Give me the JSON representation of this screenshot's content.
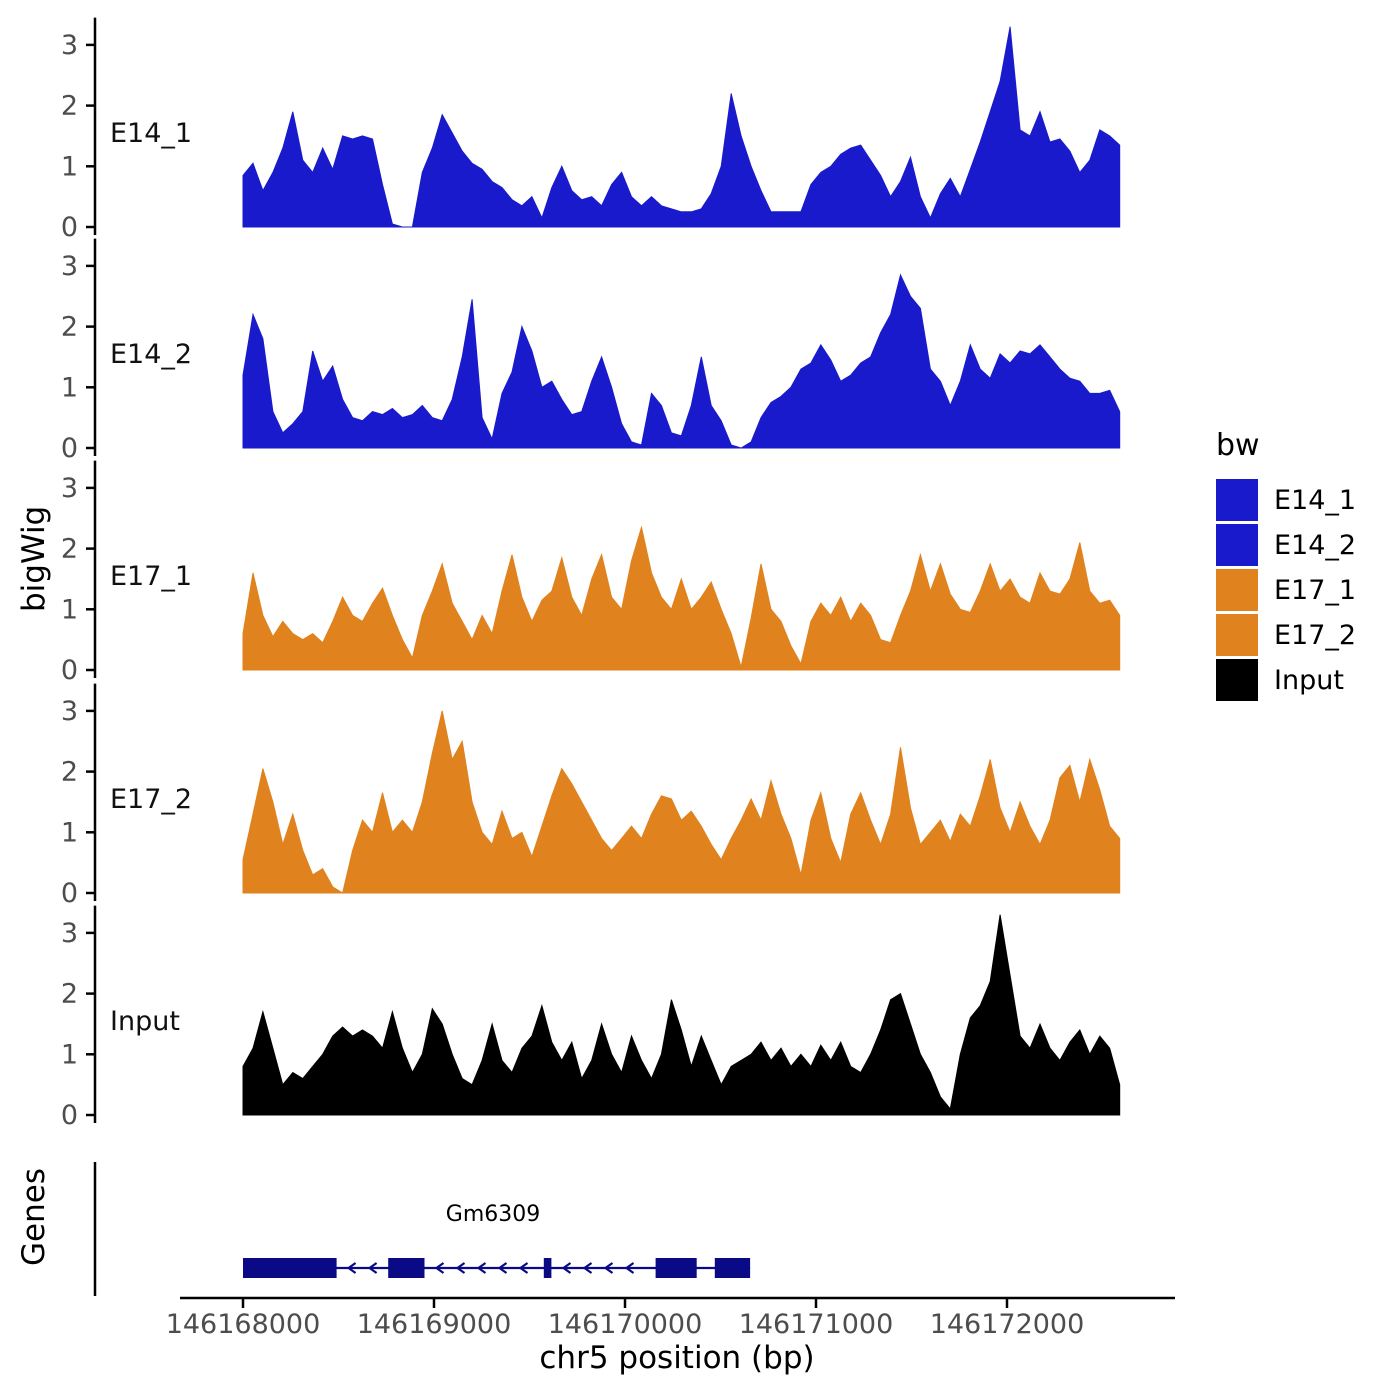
{
  "figure": {
    "y_axis_title": "bigWig",
    "genes_axis_title": "Genes",
    "background": "#ffffff"
  },
  "colors": {
    "blue": "#1a1acd",
    "orange": "#e0821e",
    "black": "#000000",
    "gene": "#0a0a87",
    "axis": "#000000",
    "tick_label": "#4d4d4d"
  },
  "chart_data": [
    {
      "type": "area",
      "name": "E14_1",
      "color": "#1a1acd",
      "x_start_bp": 146168000,
      "x_end_bp": 146172590,
      "ylim": [
        0,
        3.45
      ],
      "yticks": [
        0,
        1,
        2,
        3
      ],
      "values": [
        0.85,
        1.05,
        0.6,
        0.9,
        1.3,
        1.9,
        1.1,
        0.9,
        1.3,
        0.95,
        1.5,
        1.45,
        1.5,
        1.45,
        0.7,
        0.05,
        0,
        0,
        0.9,
        1.3,
        1.85,
        1.55,
        1.25,
        1.05,
        0.95,
        0.75,
        0.65,
        0.45,
        0.35,
        0.5,
        0.15,
        0.65,
        1.0,
        0.6,
        0.45,
        0.5,
        0.35,
        0.7,
        0.9,
        0.5,
        0.35,
        0.5,
        0.35,
        0.3,
        0.25,
        0.25,
        0.3,
        0.55,
        1.0,
        2.2,
        1.5,
        1.0,
        0.6,
        0.25,
        0.25,
        0.25,
        0.25,
        0.7,
        0.9,
        1.0,
        1.2,
        1.3,
        1.35,
        1.1,
        0.85,
        0.5,
        0.75,
        1.15,
        0.5,
        0.15,
        0.55,
        0.8,
        0.5,
        0.95,
        1.4,
        1.9,
        2.4,
        3.3,
        1.6,
        1.5,
        1.9,
        1.4,
        1.45,
        1.25,
        0.9,
        1.1,
        1.6,
        1.5,
        1.35
      ]
    },
    {
      "type": "area",
      "name": "E14_2",
      "color": "#1a1acd",
      "x_start_bp": 146168000,
      "x_end_bp": 146172590,
      "ylim": [
        0,
        3.45
      ],
      "yticks": [
        0,
        1,
        2,
        3
      ],
      "values": [
        1.2,
        2.2,
        1.8,
        0.6,
        0.25,
        0.4,
        0.6,
        1.6,
        1.1,
        1.35,
        0.8,
        0.5,
        0.45,
        0.6,
        0.55,
        0.65,
        0.5,
        0.55,
        0.7,
        0.5,
        0.45,
        0.8,
        1.5,
        2.45,
        0.5,
        0.15,
        0.9,
        1.25,
        2.0,
        1.6,
        1.0,
        1.1,
        0.8,
        0.55,
        0.6,
        1.1,
        1.5,
        1.0,
        0.4,
        0.1,
        0.05,
        0.9,
        0.7,
        0.25,
        0.2,
        0.7,
        1.5,
        0.7,
        0.45,
        0.05,
        0,
        0.1,
        0.5,
        0.75,
        0.85,
        1.0,
        1.3,
        1.4,
        1.7,
        1.45,
        1.1,
        1.2,
        1.4,
        1.5,
        1.9,
        2.2,
        2.85,
        2.5,
        2.3,
        1.3,
        1.1,
        0.7,
        1.1,
        1.7,
        1.3,
        1.15,
        1.55,
        1.4,
        1.6,
        1.55,
        1.7,
        1.5,
        1.3,
        1.15,
        1.1,
        0.9,
        0.9,
        0.95,
        0.6
      ]
    },
    {
      "type": "area",
      "name": "E17_1",
      "color": "#e0821e",
      "x_start_bp": 146168000,
      "x_end_bp": 146172590,
      "ylim": [
        0,
        3.45
      ],
      "yticks": [
        0,
        1,
        2,
        3
      ],
      "values": [
        0.6,
        1.6,
        0.9,
        0.55,
        0.8,
        0.6,
        0.5,
        0.6,
        0.45,
        0.8,
        1.2,
        0.9,
        0.8,
        1.1,
        1.35,
        0.9,
        0.5,
        0.2,
        0.9,
        1.3,
        1.75,
        1.1,
        0.8,
        0.5,
        0.9,
        0.6,
        1.3,
        1.9,
        1.2,
        0.8,
        1.15,
        1.3,
        1.85,
        1.2,
        0.9,
        1.5,
        1.9,
        1.2,
        1.0,
        1.8,
        2.35,
        1.6,
        1.2,
        1.0,
        1.5,
        1.0,
        1.2,
        1.45,
        1.0,
        0.6,
        0.05,
        0.85,
        1.75,
        1.0,
        0.8,
        0.4,
        0.1,
        0.8,
        1.1,
        0.9,
        1.2,
        0.8,
        1.1,
        0.9,
        0.5,
        0.45,
        0.9,
        1.3,
        1.9,
        1.3,
        1.75,
        1.25,
        1.0,
        0.95,
        1.3,
        1.75,
        1.3,
        1.5,
        1.2,
        1.1,
        1.6,
        1.3,
        1.25,
        1.5,
        2.1,
        1.3,
        1.1,
        1.15,
        0.9
      ]
    },
    {
      "type": "area",
      "name": "E17_2",
      "color": "#e0821e",
      "x_start_bp": 146168000,
      "x_end_bp": 146172590,
      "ylim": [
        0,
        3.45
      ],
      "yticks": [
        0,
        1,
        2,
        3
      ],
      "values": [
        0.55,
        1.3,
        2.05,
        1.5,
        0.8,
        1.3,
        0.7,
        0.3,
        0.4,
        0.1,
        0,
        0.7,
        1.2,
        1.0,
        1.65,
        1.0,
        1.2,
        1.0,
        1.5,
        2.3,
        3.0,
        2.2,
        2.5,
        1.5,
        1.0,
        0.8,
        1.35,
        0.9,
        1.0,
        0.6,
        1.1,
        1.6,
        2.05,
        1.8,
        1.5,
        1.2,
        0.9,
        0.7,
        0.9,
        1.1,
        0.9,
        1.3,
        1.6,
        1.55,
        1.2,
        1.35,
        1.1,
        0.8,
        0.55,
        0.9,
        1.2,
        1.55,
        1.2,
        1.85,
        1.3,
        0.9,
        0.3,
        1.2,
        1.65,
        0.9,
        0.5,
        1.3,
        1.65,
        1.2,
        0.8,
        1.3,
        2.4,
        1.4,
        0.8,
        1.0,
        1.2,
        0.85,
        1.3,
        1.1,
        1.6,
        2.2,
        1.4,
        1.0,
        1.5,
        1.1,
        0.8,
        1.2,
        1.9,
        2.1,
        1.5,
        2.2,
        1.7,
        1.1,
        0.9
      ]
    },
    {
      "type": "area",
      "name": "Input",
      "color": "#000000",
      "x_start_bp": 146168000,
      "x_end_bp": 146172590,
      "ylim": [
        0,
        3.45
      ],
      "yticks": [
        0,
        1,
        2,
        3
      ],
      "values": [
        0.8,
        1.1,
        1.7,
        1.1,
        0.5,
        0.7,
        0.6,
        0.8,
        1.0,
        1.3,
        1.45,
        1.3,
        1.4,
        1.3,
        1.1,
        1.7,
        1.1,
        0.7,
        1.0,
        1.75,
        1.5,
        1.0,
        0.6,
        0.5,
        0.9,
        1.5,
        0.9,
        0.7,
        1.1,
        1.3,
        1.8,
        1.2,
        0.9,
        1.2,
        0.6,
        0.9,
        1.5,
        1.0,
        0.7,
        1.3,
        0.9,
        0.6,
        1.0,
        1.9,
        1.4,
        0.8,
        1.3,
        0.9,
        0.5,
        0.8,
        0.9,
        1.0,
        1.2,
        0.9,
        1.1,
        0.8,
        1.0,
        0.8,
        1.15,
        0.9,
        1.2,
        0.8,
        0.7,
        1.0,
        1.4,
        1.9,
        2.0,
        1.5,
        1.0,
        0.7,
        0.3,
        0.1,
        1.0,
        1.6,
        1.8,
        2.2,
        3.3,
        2.3,
        1.3,
        1.1,
        1.5,
        1.1,
        0.9,
        1.2,
        1.4,
        1.0,
        1.3,
        1.1,
        0.5
      ]
    }
  ],
  "x_axis": {
    "title": "chr5 position (bp)",
    "ticks_bp": [
      146168000,
      146169000,
      146170000,
      146171000,
      146172000
    ],
    "tick_labels": [
      "146168000",
      "146169000",
      "146170000",
      "146171000",
      "146172000"
    ]
  },
  "gene_track": {
    "gene_label": "Gm6309",
    "strand": "-",
    "color": "#0a0a87",
    "exons_bp": [
      [
        146168000,
        146168490
      ],
      [
        146168760,
        146168950
      ],
      [
        146169575,
        146169615
      ],
      [
        146170160,
        146170375
      ],
      [
        146170470,
        146170655
      ]
    ]
  },
  "legend": {
    "title": "bw",
    "items": [
      {
        "label": "E14_1",
        "color": "#1a1acd"
      },
      {
        "label": "E14_2",
        "color": "#1a1acd"
      },
      {
        "label": "E17_1",
        "color": "#e0821e"
      },
      {
        "label": "E17_2",
        "color": "#e0821e"
      },
      {
        "label": "Input",
        "color": "#000000"
      }
    ]
  }
}
